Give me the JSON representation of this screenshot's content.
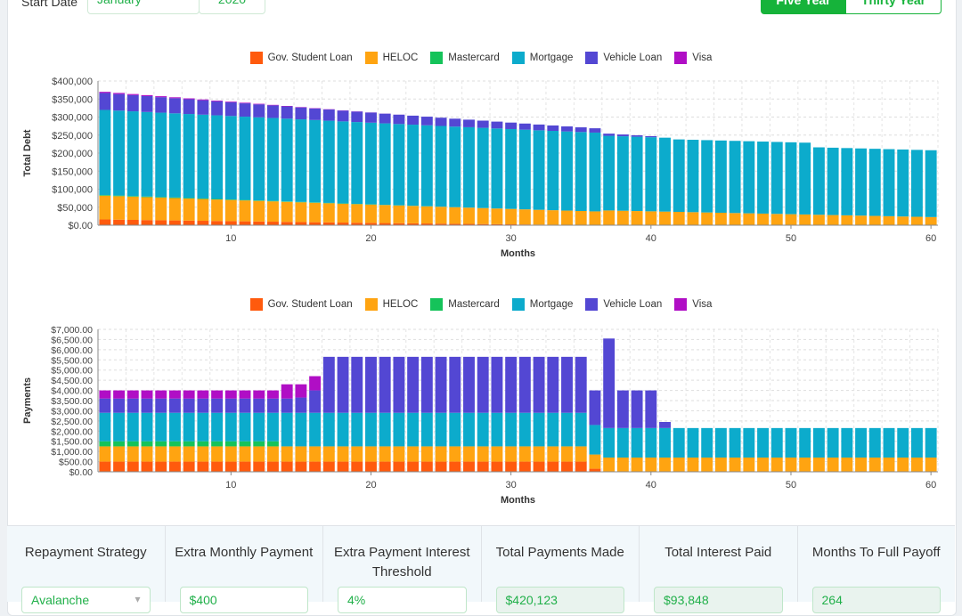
{
  "header": {
    "start_date_label": "Start Date",
    "start_month": "January",
    "start_year": "2020",
    "view_five_year": "Five Year",
    "view_thirty_year": "Thirty Year"
  },
  "colors": {
    "gov_student_loan": "#ff5a0d",
    "heloc": "#ffa411",
    "mastercard": "#15c35a",
    "mortgage": "#0cabcc",
    "vehicle_loan": "#5347d3",
    "visa": "#b00ec5"
  },
  "legend": [
    "Gov. Student Loan",
    "HELOC",
    "Mastercard",
    "Mortgage",
    "Vehicle Loan",
    "Visa"
  ],
  "chart_data": [
    {
      "type": "bar",
      "stacked": true,
      "xlabel": "Months",
      "ylabel": "Total Debt",
      "ylim": [
        0,
        400000
      ],
      "yticks": [
        "$0.00",
        "$50,000",
        "$100,000",
        "$150,000",
        "$200,000",
        "$250,000",
        "$300,000",
        "$350,000",
        "$400,000"
      ],
      "xticks": [
        "10",
        "20",
        "30",
        "40",
        "50",
        "60"
      ],
      "legend_position": "top",
      "grid": true,
      "series": [
        {
          "name": "Gov. Student Loan",
          "values": [
            16000,
            15400,
            14800,
            14300,
            13800,
            13300,
            12800,
            12300,
            11800,
            11300,
            10800,
            10300,
            9800,
            9300,
            8800,
            8300,
            7800,
            7300,
            6900,
            6500,
            6000,
            5600,
            5200,
            4800,
            4400,
            4000,
            3600,
            3200,
            2800,
            2400,
            2000,
            1600,
            1300,
            1000,
            700,
            400,
            0,
            0,
            0,
            0,
            0,
            0,
            0,
            0,
            0,
            0,
            0,
            0,
            0,
            0,
            0,
            0,
            0,
            0,
            0,
            0,
            0,
            0,
            0,
            0
          ]
        },
        {
          "name": "HELOC",
          "values": [
            66000,
            65200,
            64400,
            63600,
            62800,
            62000,
            61200,
            60400,
            59600,
            58800,
            58000,
            57200,
            56400,
            55600,
            54800,
            54000,
            53200,
            52400,
            51600,
            50800,
            50000,
            49200,
            48400,
            47600,
            46800,
            46000,
            45200,
            44400,
            43600,
            42800,
            42000,
            41200,
            40400,
            39600,
            38800,
            38000,
            41000,
            40200,
            39400,
            38600,
            37800,
            37000,
            36200,
            35400,
            34600,
            33800,
            33000,
            32200,
            31400,
            30600,
            29800,
            29000,
            28200,
            27400,
            26600,
            25800,
            25000,
            24200,
            23400,
            22600
          ]
        },
        {
          "name": "Mastercard",
          "values": [
            1800,
            1750,
            1700,
            1650,
            1600,
            1550,
            1500,
            1450,
            1400,
            1350,
            1300,
            1250,
            1200,
            1150,
            1100,
            1000,
            900,
            800,
            700,
            600,
            500,
            400,
            300,
            200,
            100,
            0,
            0,
            0,
            0,
            0,
            0,
            0,
            0,
            0,
            0,
            0,
            0,
            0,
            0,
            0,
            0,
            0,
            0,
            0,
            0,
            0,
            0,
            0,
            0,
            0,
            0,
            0,
            0,
            0,
            0,
            0,
            0,
            0,
            0,
            0
          ]
        },
        {
          "name": "Mortgage",
          "values": [
            236000,
            235500,
            235000,
            234500,
            234000,
            233500,
            233000,
            232500,
            232000,
            231500,
            231000,
            230500,
            230000,
            229500,
            229000,
            228500,
            228000,
            227500,
            227000,
            226500,
            226000,
            225500,
            225000,
            224500,
            224000,
            223500,
            223000,
            222500,
            222000,
            221500,
            221000,
            220500,
            220000,
            219500,
            219000,
            218500,
            207000,
            206500,
            206000,
            205500,
            205000,
            201000,
            200800,
            200600,
            200400,
            200200,
            200000,
            199800,
            199600,
            199400,
            199200,
            187000,
            186800,
            186600,
            186400,
            186200,
            186000,
            185800,
            185600,
            185400
          ]
        },
        {
          "name": "Vehicle Loan",
          "values": [
            47000,
            46000,
            45000,
            44000,
            43000,
            42000,
            41000,
            40000,
            39000,
            38000,
            37000,
            36000,
            35000,
            34000,
            33000,
            32000,
            31000,
            30000,
            29000,
            28000,
            27000,
            26000,
            25000,
            24000,
            23000,
            22000,
            21000,
            20000,
            19000,
            18000,
            17000,
            16000,
            15000,
            14000,
            13000,
            12000,
            6000,
            5000,
            4000,
            3000,
            0,
            0,
            0,
            0,
            0,
            0,
            0,
            0,
            0,
            0,
            0,
            0,
            0,
            0,
            0,
            0,
            0,
            0,
            0,
            0
          ]
        },
        {
          "name": "Visa",
          "values": [
            3200,
            3050,
            2900,
            2750,
            2600,
            2450,
            2300,
            2150,
            2000,
            1850,
            1700,
            1550,
            1400,
            1250,
            1100,
            950,
            800,
            650,
            500,
            350,
            200,
            100,
            0,
            0,
            0,
            0,
            0,
            0,
            0,
            0,
            0,
            0,
            0,
            0,
            0,
            0,
            0,
            0,
            0,
            0,
            0,
            0,
            0,
            0,
            0,
            0,
            0,
            0,
            0,
            0,
            0,
            0,
            0,
            0,
            0,
            0,
            0,
            0,
            0,
            0
          ]
        }
      ]
    },
    {
      "type": "bar",
      "stacked": true,
      "xlabel": "Months",
      "ylabel": "Payments",
      "ylim": [
        0,
        7000
      ],
      "yticks": [
        "$0.00",
        "$500.00",
        "$1,000.00",
        "$1,500.00",
        "$2,000.00",
        "$2,500.00",
        "$3,000.00",
        "$3,500.00",
        "$4,000.00",
        "$4,500.00",
        "$5,000.00",
        "$5,500.00",
        "$6,000.00",
        "$6,500.00",
        "$7,000.00"
      ],
      "xticks": [
        "10",
        "20",
        "30",
        "40",
        "50",
        "60"
      ],
      "legend_position": "top",
      "grid": true,
      "series": [
        {
          "name": "Gov. Student Loan",
          "values": [
            500,
            500,
            500,
            500,
            500,
            500,
            500,
            500,
            500,
            500,
            500,
            500,
            500,
            500,
            500,
            500,
            500,
            500,
            500,
            500,
            500,
            500,
            500,
            500,
            500,
            500,
            500,
            500,
            500,
            500,
            500,
            500,
            500,
            500,
            500,
            150,
            0,
            0,
            0,
            0,
            0,
            0,
            0,
            0,
            0,
            0,
            0,
            0,
            0,
            0,
            0,
            0,
            0,
            0,
            0,
            0,
            0,
            0,
            0,
            0
          ]
        },
        {
          "name": "HELOC",
          "values": [
            750,
            750,
            750,
            750,
            750,
            750,
            750,
            750,
            750,
            750,
            750,
            750,
            750,
            750,
            750,
            750,
            750,
            750,
            750,
            750,
            750,
            750,
            750,
            750,
            750,
            750,
            750,
            750,
            750,
            750,
            750,
            750,
            750,
            750,
            750,
            700,
            700,
            700,
            700,
            700,
            700,
            700,
            700,
            700,
            700,
            700,
            700,
            700,
            700,
            700,
            700,
            700,
            700,
            700,
            700,
            700,
            700,
            700,
            700,
            700
          ]
        },
        {
          "name": "Mastercard",
          "values": [
            250,
            250,
            250,
            250,
            250,
            250,
            250,
            250,
            250,
            250,
            250,
            250,
            250,
            0,
            0,
            0,
            0,
            0,
            0,
            0,
            0,
            0,
            0,
            0,
            0,
            0,
            0,
            0,
            0,
            0,
            0,
            0,
            0,
            0,
            0,
            0,
            0,
            0,
            0,
            0,
            0,
            0,
            0,
            0,
            0,
            0,
            0,
            0,
            0,
            0,
            0,
            0,
            0,
            0,
            0,
            0,
            0,
            0,
            0,
            0
          ]
        },
        {
          "name": "Mortgage",
          "values": [
            1400,
            1400,
            1400,
            1400,
            1400,
            1400,
            1400,
            1400,
            1400,
            1400,
            1400,
            1400,
            1400,
            1650,
            1650,
            1650,
            1650,
            1650,
            1650,
            1650,
            1650,
            1650,
            1650,
            1650,
            1650,
            1650,
            1650,
            1650,
            1650,
            1650,
            1650,
            1650,
            1650,
            1650,
            1650,
            1450,
            1450,
            1450,
            1450,
            1450,
            1450,
            1450,
            1450,
            1450,
            1450,
            1450,
            1450,
            1450,
            1450,
            1450,
            1450,
            1450,
            1450,
            1450,
            1450,
            1450,
            1450,
            1450,
            1450,
            1450
          ]
        },
        {
          "name": "Vehicle Loan",
          "values": [
            700,
            700,
            700,
            700,
            700,
            700,
            700,
            700,
            700,
            700,
            700,
            700,
            700,
            700,
            750,
            1100,
            2750,
            2750,
            2750,
            2750,
            2750,
            2750,
            2750,
            2750,
            2750,
            2750,
            2750,
            2750,
            2750,
            2750,
            2750,
            2750,
            2750,
            2750,
            2750,
            1700,
            4400,
            1850,
            1850,
            1850,
            300,
            0,
            0,
            0,
            0,
            0,
            0,
            0,
            0,
            0,
            0,
            0,
            0,
            0,
            0,
            0,
            0,
            0,
            0,
            0
          ]
        },
        {
          "name": "Visa",
          "values": [
            400,
            400,
            400,
            400,
            400,
            400,
            400,
            400,
            400,
            400,
            400,
            400,
            400,
            700,
            650,
            700,
            0,
            0,
            0,
            0,
            0,
            0,
            0,
            0,
            0,
            0,
            0,
            0,
            0,
            0,
            0,
            0,
            0,
            0,
            0,
            0,
            0,
            0,
            0,
            0,
            0,
            0,
            0,
            0,
            0,
            0,
            0,
            0,
            0,
            0,
            0,
            0,
            0,
            0,
            0,
            0,
            0,
            0,
            0,
            0
          ]
        }
      ]
    }
  ],
  "stats": [
    {
      "title": "Repayment Strategy",
      "value": "Avalanche",
      "kind": "select"
    },
    {
      "title": "Extra Monthly Payment",
      "value": "$400",
      "kind": "input"
    },
    {
      "title": "Extra Payment Interest Threshold",
      "value": "4%",
      "kind": "input"
    },
    {
      "title": "Total Payments Made",
      "value": "$420,123",
      "kind": "readonly"
    },
    {
      "title": "Total Interest Paid",
      "value": "$93,848",
      "kind": "readonly"
    },
    {
      "title": "Months To Full Payoff",
      "value": "264",
      "kind": "readonly"
    }
  ]
}
